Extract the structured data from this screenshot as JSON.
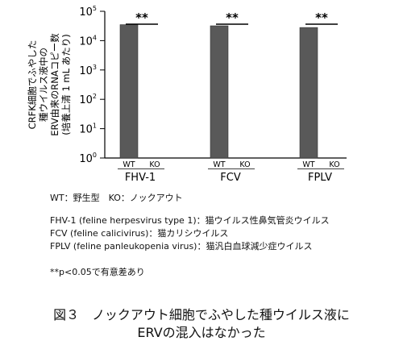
{
  "chart_data": {
    "type": "bar",
    "ylabel_lines": [
      "CRFK細胞でふやした",
      "種ウイルス液中の",
      "ERV由来のRNAコピー数",
      "(培養上清 1 mL あたり)"
    ],
    "y_scale": "log",
    "ylim": [
      1,
      100000
    ],
    "y_ticks": [
      {
        "base": "10",
        "exp": "0",
        "value": 1
      },
      {
        "base": "10",
        "exp": "1",
        "value": 10
      },
      {
        "base": "10",
        "exp": "2",
        "value": 100
      },
      {
        "base": "10",
        "exp": "3",
        "value": 1000
      },
      {
        "base": "10",
        "exp": "4",
        "value": 10000
      },
      {
        "base": "10",
        "exp": "5",
        "value": 100000
      }
    ],
    "categories": [
      "FHV-1",
      "FCV",
      "FPLV"
    ],
    "subcategories": [
      "WT",
      "KO"
    ],
    "series": [
      {
        "name": "WT",
        "values": [
          35000,
          32000,
          28000
        ]
      },
      {
        "name": "KO",
        "values": [
          null,
          null,
          null
        ]
      }
    ],
    "significance": [
      "**",
      "**",
      "**"
    ],
    "bar_color": "#595959"
  },
  "legend": {
    "genotype": "WT：野生型　KO：ノックアウト",
    "virus_lines": [
      "FHV-1 (feline herpesvirus type 1)：猫ウイルス性鼻気管炎ウイルス",
      "FCV (feline calicivirus)：猫カリシウイルス",
      "FPLV (feline panleukopenia virus)：猫汎白血球減少症ウイルス"
    ],
    "significance_note": "**p<0.05で有意差あり"
  },
  "caption": {
    "line1": "図３　ノックアウト細胞でふやした種ウイルス液に",
    "line2": "ERVの混入はなかった"
  }
}
